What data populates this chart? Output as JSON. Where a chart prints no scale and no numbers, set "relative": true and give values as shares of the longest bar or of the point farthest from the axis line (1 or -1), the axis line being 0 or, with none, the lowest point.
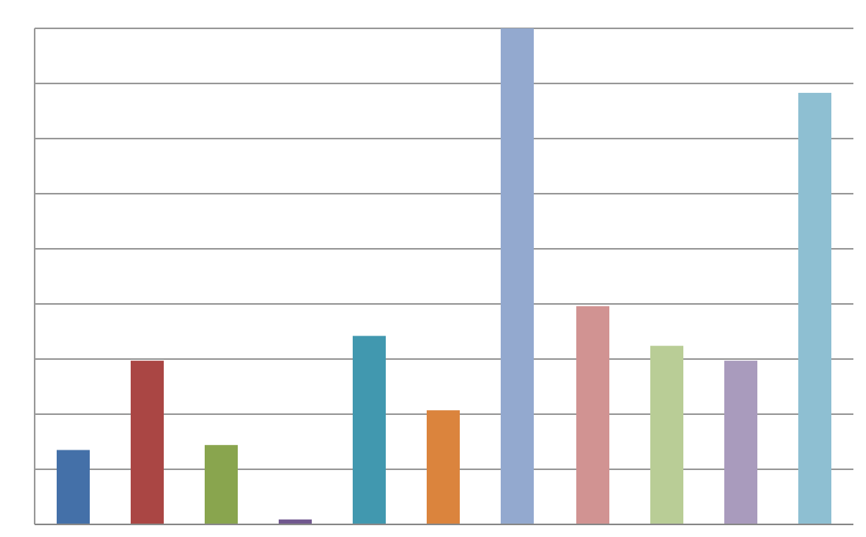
{
  "chart_data": {
    "type": "bar",
    "relative": true,
    "grid": true,
    "categories": [
      null,
      null,
      null,
      null,
      null,
      null,
      null,
      null,
      null,
      null,
      null
    ],
    "values": [
      0.15,
      0.33,
      0.16,
      0.01,
      0.38,
      0.23,
      1,
      0.44,
      0.36,
      0.33,
      0.87
    ],
    "colors": [
      "#4470a8",
      "#aa4644",
      "#89a54e",
      "#71588f",
      "#4198af",
      "#db843d",
      "#93a9cf",
      "#d19392",
      "#b9cd96",
      "#a99bbd",
      "#8ebfd2"
    ]
  }
}
